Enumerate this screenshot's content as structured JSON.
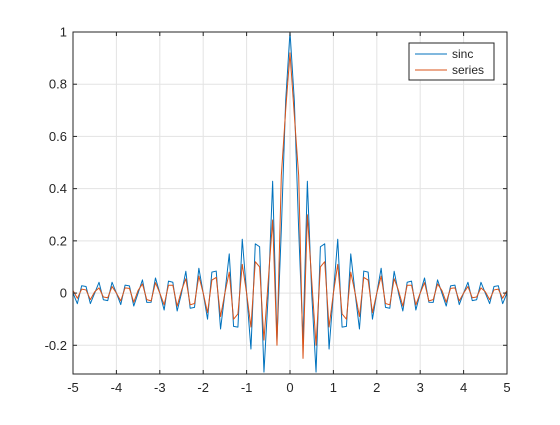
{
  "chart_data": {
    "type": "line",
    "title": "",
    "xlabel": "",
    "ylabel": "",
    "xlim": [
      -5,
      5
    ],
    "ylim": [
      -0.31,
      1
    ],
    "xticks": [
      -5,
      -4,
      -3,
      -2,
      -1,
      0,
      1,
      2,
      3,
      4,
      5
    ],
    "xtick_labels": [
      "-5",
      "-4",
      "-3",
      "-2",
      "-1",
      "0",
      "1",
      "2",
      "3",
      "4",
      "5"
    ],
    "yticks": [
      -0.2,
      0,
      0.2,
      0.4,
      0.6,
      0.8,
      1
    ],
    "ytick_labels": [
      "-0.2",
      "0",
      "0.2",
      "0.4",
      "0.6",
      "0.8",
      "1"
    ],
    "grid": true,
    "legend_position": "top-right",
    "series": [
      {
        "name": "sinc",
        "color": "#0072BD",
        "x": [
          -5,
          -4.9,
          -4.8,
          -4.7,
          -4.6,
          -4.5,
          -4.4,
          -4.3,
          -4.2,
          -4.1,
          -4,
          -3.9,
          -3.8,
          -3.7,
          -3.6,
          -3.5,
          -3.4,
          -3.3,
          -3.2,
          -3.1,
          -3,
          -2.9,
          -2.8,
          -2.7,
          -2.6,
          -2.5,
          -2.4,
          -2.3,
          -2.2,
          -2.1,
          -2,
          -1.9,
          -1.8,
          -1.7,
          -1.6,
          -1.5,
          -1.4,
          -1.3,
          -1.2,
          -1.1,
          -1,
          -0.9,
          -0.8,
          -0.7,
          -0.6,
          -0.5,
          -0.4,
          -0.3,
          -0.2,
          -0.1,
          0,
          0.1,
          0.2,
          0.3,
          0.4,
          0.5,
          0.6,
          0.7,
          0.8,
          0.9,
          1,
          1.1,
          1.2,
          1.3,
          1.4,
          1.5,
          1.6,
          1.7,
          1.8,
          1.9,
          2,
          2.1,
          2.2,
          2.3,
          2.4,
          2.5,
          2.6,
          2.7,
          2.8,
          2.9,
          3,
          3.1,
          3.2,
          3.3,
          3.4,
          3.5,
          3.6,
          3.7,
          3.8,
          3.9,
          4,
          4.1,
          4.2,
          4.3,
          4.4,
          4.5,
          4.6,
          4.7,
          4.8,
          4.9,
          5
        ],
        "y": [
          0,
          -0.0406,
          0.0281,
          0.0253,
          -0.0404,
          0,
          0.0412,
          -0.0258,
          -0.0289,
          0.0413,
          0,
          -0.0441,
          0.0303,
          0.0277,
          -0.0497,
          0,
          0.0505,
          -0.0357,
          -0.0351,
          0.0579,
          0,
          -0.0649,
          0.0457,
          0.0415,
          -0.0686,
          0,
          0.0834,
          -0.0581,
          -0.0547,
          0.0952,
          0,
          -0.1,
          0.0803,
          0.0843,
          -0.1376,
          0,
          0.1499,
          -0.1278,
          -0.1304,
          0.2063,
          0,
          -0.2144,
          0.1886,
          0.1774,
          -0.3027,
          0,
          0.4281,
          -0.1821,
          0.2425,
          0.7356,
          1,
          0.7356,
          0.2425,
          -0.1821,
          0.4281,
          0,
          -0.3027,
          0.1774,
          0.1886,
          -0.2144,
          0,
          0.2063,
          -0.1304,
          -0.1278,
          0.1499,
          0,
          -0.1376,
          0.0843,
          0.0803,
          -0.1,
          0,
          0.0952,
          -0.0547,
          -0.0581,
          0.0834,
          0,
          -0.0686,
          0.0415,
          0.0457,
          -0.0649,
          0,
          0.0579,
          -0.0351,
          -0.0357,
          0.0505,
          0,
          -0.0497,
          0.0277,
          0.0303,
          -0.0441,
          0,
          0.0413,
          -0.0289,
          -0.0258,
          0.0412,
          0,
          -0.0404,
          0.0253,
          0.0281,
          -0.0406,
          0
        ]
      },
      {
        "name": "series",
        "color": "#D95319",
        "x": [
          -5,
          -4.9,
          -4.8,
          -4.7,
          -4.6,
          -4.5,
          -4.4,
          -4.3,
          -4.2,
          -4.1,
          -4,
          -3.9,
          -3.8,
          -3.7,
          -3.6,
          -3.5,
          -3.4,
          -3.3,
          -3.2,
          -3.1,
          -3,
          -2.9,
          -2.8,
          -2.7,
          -2.6,
          -2.5,
          -2.4,
          -2.3,
          -2.2,
          -2.1,
          -2,
          -1.9,
          -1.8,
          -1.7,
          -1.6,
          -1.5,
          -1.4,
          -1.3,
          -1.2,
          -1.1,
          -1,
          -0.9,
          -0.8,
          -0.7,
          -0.6,
          -0.5,
          -0.4,
          -0.3,
          -0.2,
          -0.1,
          0,
          0.1,
          0.2,
          0.3,
          0.4,
          0.5,
          0.6,
          0.7,
          0.8,
          0.9,
          1,
          1.1,
          1.2,
          1.3,
          1.4,
          1.5,
          1.6,
          1.7,
          1.8,
          1.9,
          2,
          2.1,
          2.2,
          2.3,
          2.4,
          2.5,
          2.6,
          2.7,
          2.8,
          2.9,
          3,
          3.1,
          3.2,
          3.3,
          3.4,
          3.5,
          3.6,
          3.7,
          3.8,
          3.9,
          4,
          4.1,
          4.2,
          4.3,
          4.4,
          4.5,
          4.6,
          4.7,
          4.8,
          4.9,
          5
        ],
        "y": [
          0.01,
          -0.02,
          0.015,
          0.012,
          -0.025,
          0.005,
          0.02,
          -0.015,
          -0.018,
          0.025,
          0,
          -0.03,
          0.02,
          0.018,
          -0.035,
          0.01,
          0.035,
          -0.025,
          -0.03,
          0.04,
          0,
          -0.045,
          0.03,
          0.03,
          -0.05,
          0.01,
          0.055,
          -0.045,
          -0.04,
          0.065,
          0,
          -0.075,
          0.05,
          0.06,
          -0.09,
          0,
          0.08,
          -0.1,
          -0.08,
          0.11,
          0,
          -0.13,
          0.12,
          0.1,
          -0.18,
          0.05,
          0.28,
          -0.2,
          0.45,
          0.7,
          0.92,
          0.68,
          0.45,
          -0.25,
          0.3,
          0.05,
          -0.2,
          0.1,
          0.12,
          -0.13,
          0,
          0.11,
          -0.08,
          -0.1,
          0.08,
          0,
          -0.09,
          0.06,
          0.05,
          -0.075,
          0,
          0.065,
          -0.04,
          -0.045,
          0.055,
          0.01,
          -0.05,
          0.03,
          0.03,
          -0.045,
          0,
          0.04,
          -0.03,
          -0.025,
          0.035,
          0.01,
          -0.035,
          0.018,
          0.02,
          -0.03,
          0,
          0.025,
          -0.018,
          -0.015,
          0.02,
          0.005,
          -0.025,
          0.012,
          0.015,
          -0.02,
          0.01
        ]
      }
    ]
  }
}
